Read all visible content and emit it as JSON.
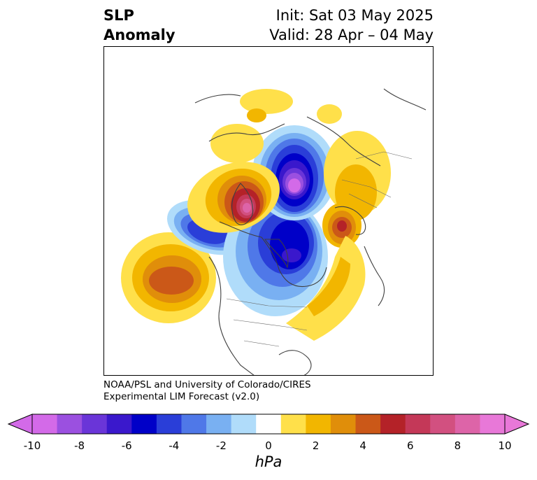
{
  "title": {
    "left_line1": "SLP",
    "left_line2": "Anomaly",
    "right_line1": "Init: Sat 03 May 2025",
    "right_line2": "Valid: 28 Apr – 04 May"
  },
  "credit": {
    "line1": "NOAA/PSL and University of Colorado/CIRES",
    "line2": "Experimental LIM Forecast (v2.0)"
  },
  "colorbar": {
    "unit": "hPa",
    "ticks": [
      "-10",
      "-8",
      "-6",
      "-4",
      "-2",
      "0",
      "2",
      "4",
      "6",
      "8",
      "10"
    ],
    "levels": [
      -10,
      -9,
      -8,
      -7,
      -6,
      -5,
      -4,
      -3,
      -2,
      -1,
      1,
      2,
      3,
      4,
      5,
      6,
      7,
      8,
      9,
      10
    ],
    "colors": [
      "#d36ae8",
      "#9b50e0",
      "#6a35d8",
      "#3a18cc",
      "#0000c8",
      "#2a3ed8",
      "#4f78e8",
      "#79b0f2",
      "#b0dcfa",
      "#ffffff",
      "#ffe04a",
      "#f2b600",
      "#e08e0a",
      "#cb5818",
      "#b42228",
      "#c43858",
      "#d25080",
      "#dd64a8",
      "#e878d8"
    ],
    "under_color": "#d36ae8",
    "over_color": "#e878d8"
  },
  "map": {
    "projection": "north-polar-stereographic",
    "anomaly_centers": [
      {
        "name": "arctic-low",
        "sign": "negative",
        "peak_hpa": -10
      },
      {
        "name": "hudson-bay-low",
        "sign": "negative",
        "peak_hpa": -7
      },
      {
        "name": "alaska-gulf-low",
        "sign": "negative",
        "peak_hpa": -7
      },
      {
        "name": "greenland-high",
        "sign": "positive",
        "peak_hpa": 9
      },
      {
        "name": "north-pacific-high",
        "sign": "positive",
        "peak_hpa": 5
      },
      {
        "name": "eurasian-high",
        "sign": "positive",
        "peak_hpa": 5
      },
      {
        "name": "north-atlantic-high",
        "sign": "positive",
        "peak_hpa": 2
      }
    ]
  }
}
